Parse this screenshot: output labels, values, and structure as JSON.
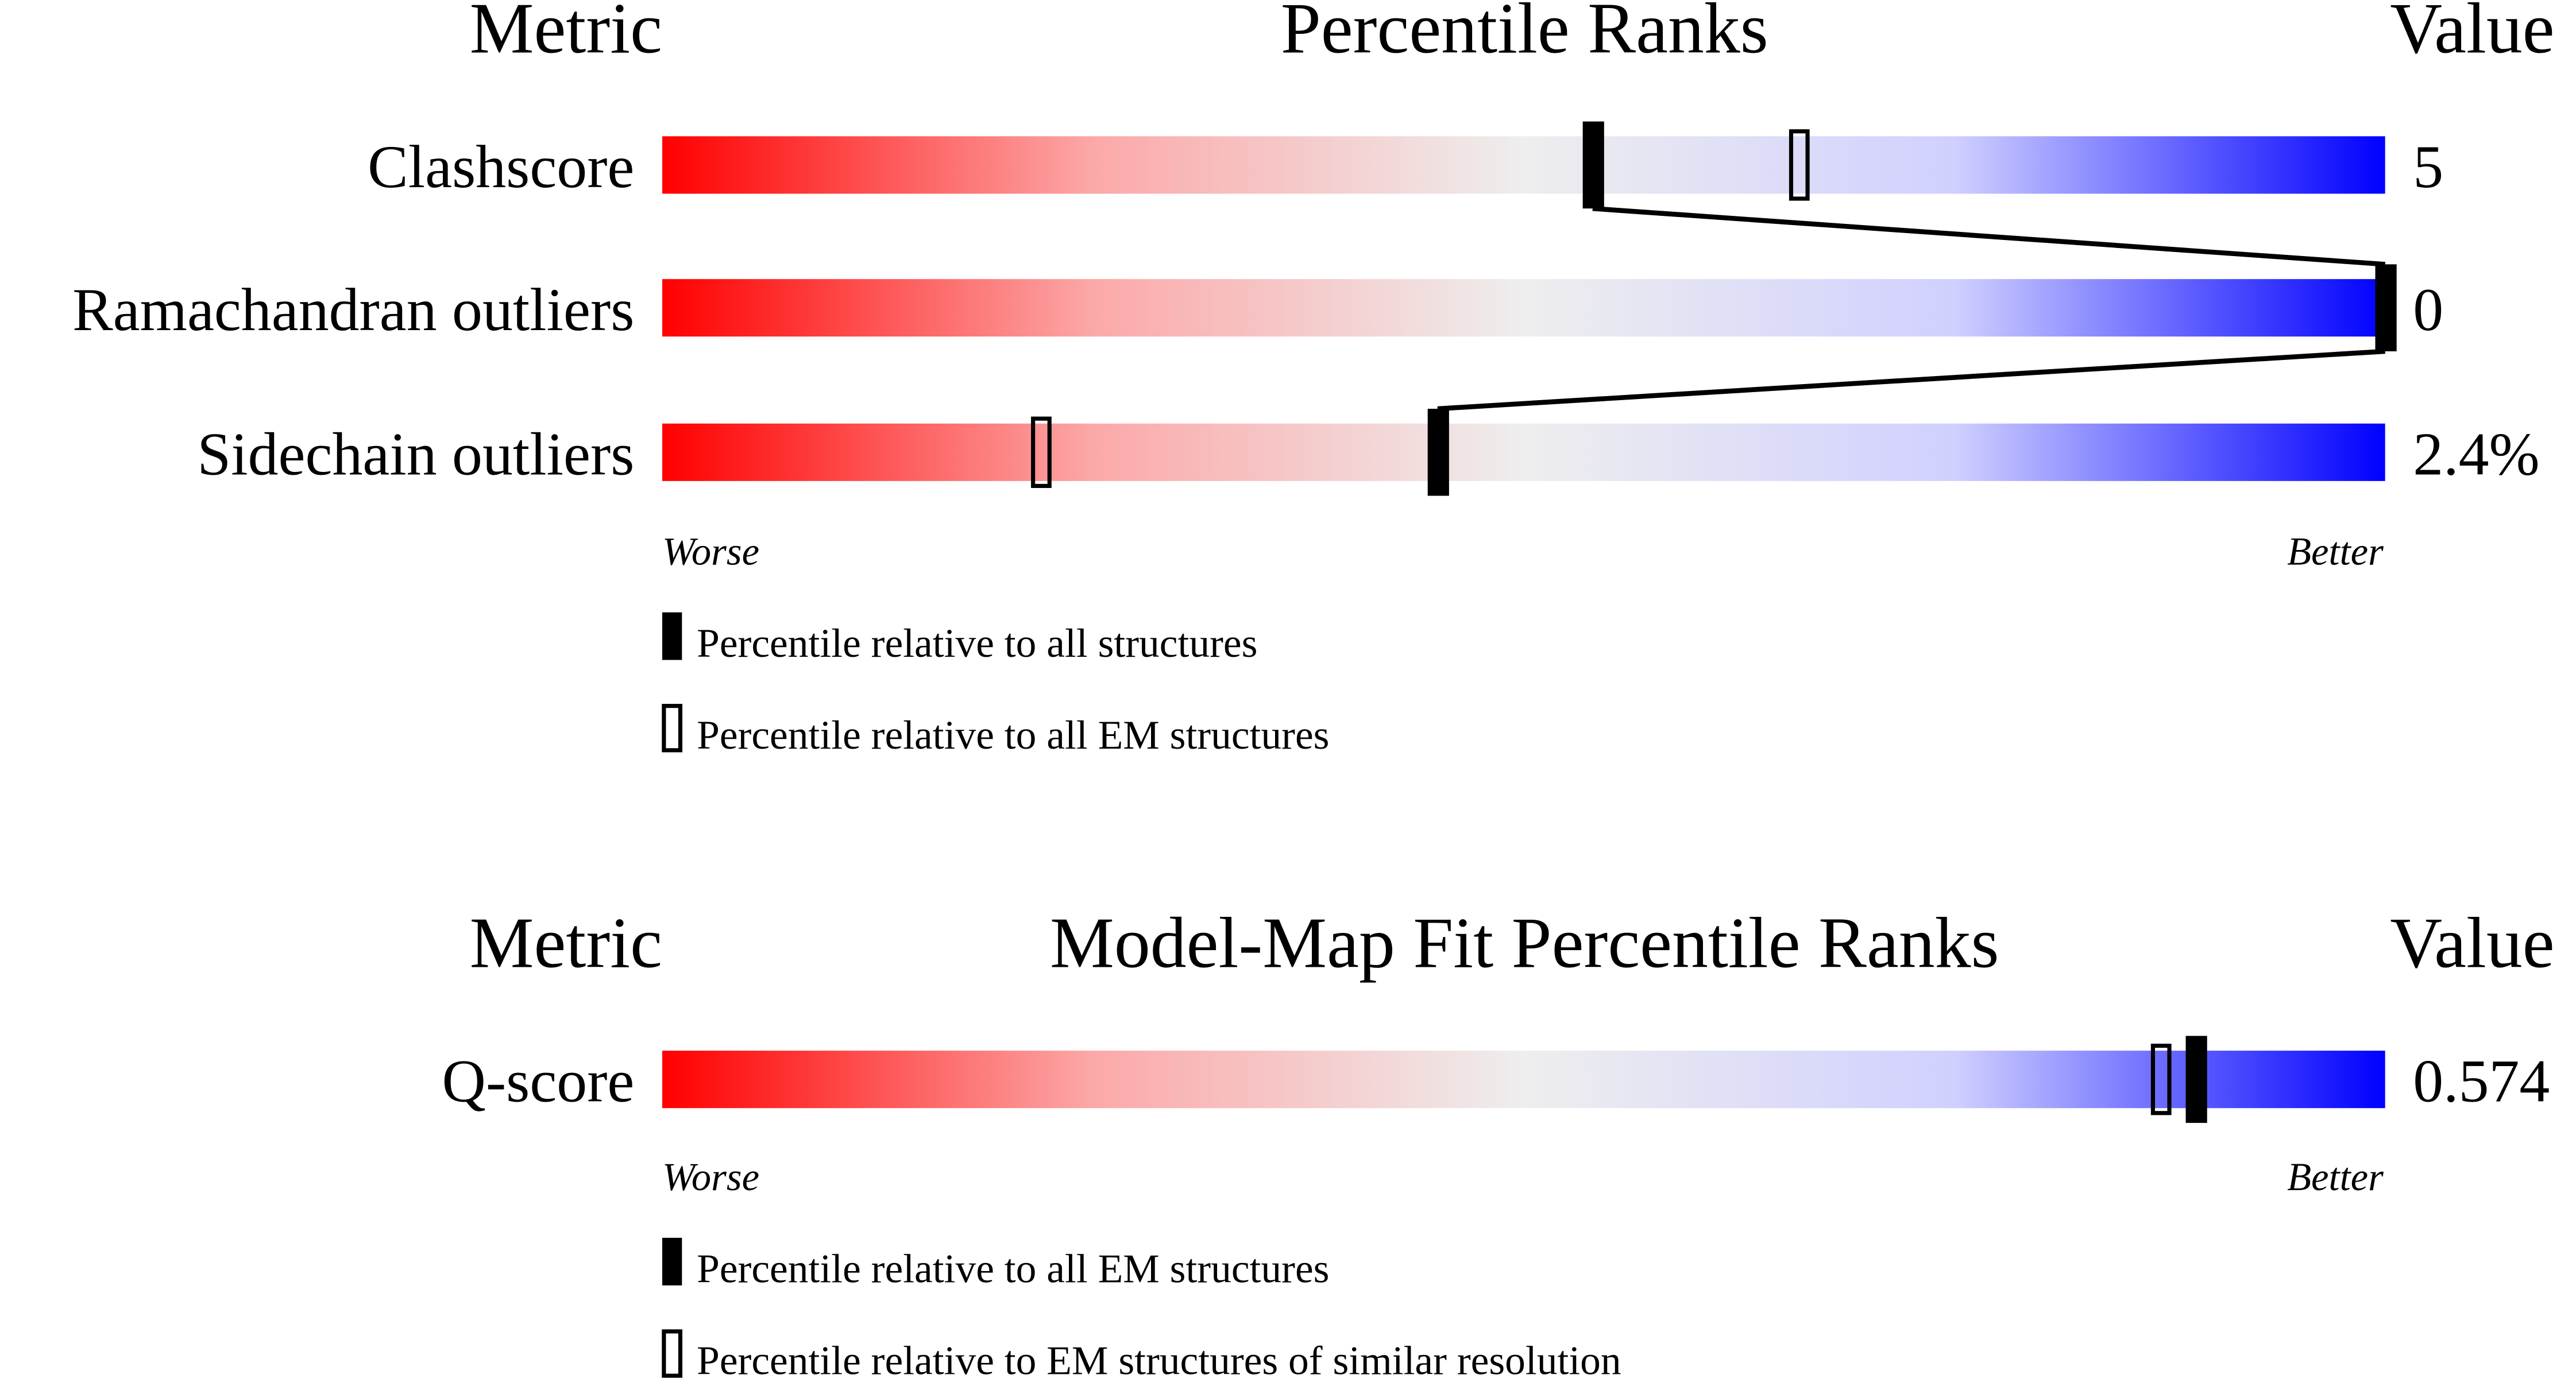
{
  "chart_data": [
    {
      "type": "table",
      "headers": {
        "metric": "Metric",
        "title": "Percentile Ranks",
        "value": "Value"
      },
      "xlim": [
        0,
        100
      ],
      "axis": {
        "left": "Worse",
        "right": "Better"
      },
      "rows": [
        {
          "metric": "Clashscore",
          "value": "5",
          "percentile_all": 54,
          "percentile_em": 66
        },
        {
          "metric": "Ramachandran outliers",
          "value": "0",
          "percentile_all": 100,
          "percentile_em": null
        },
        {
          "metric": "Sidechain outliers",
          "value": "2.4%",
          "percentile_all": 45,
          "percentile_em": 22
        }
      ],
      "legend": [
        {
          "marker": "filled",
          "label": "Percentile relative to all structures"
        },
        {
          "marker": "open",
          "label": "Percentile relative to all EM structures"
        }
      ]
    },
    {
      "type": "table",
      "headers": {
        "metric": "Metric",
        "title": "Model-Map Fit Percentile Ranks",
        "value": "Value"
      },
      "xlim": [
        0,
        100
      ],
      "axis": {
        "left": "Worse",
        "right": "Better"
      },
      "rows": [
        {
          "metric": "Q-score",
          "value": "0.574",
          "percentile_all": 89,
          "percentile_em": 87
        }
      ],
      "legend": [
        {
          "marker": "filled",
          "label": "Percentile relative to all EM structures"
        },
        {
          "marker": "open",
          "label": "Percentile relative to EM structures of similar resolution"
        }
      ]
    }
  ],
  "colors": {
    "worse": "#ff0000",
    "middle": "#eeeeee",
    "better": "#0000ff",
    "marker": "#000000"
  }
}
